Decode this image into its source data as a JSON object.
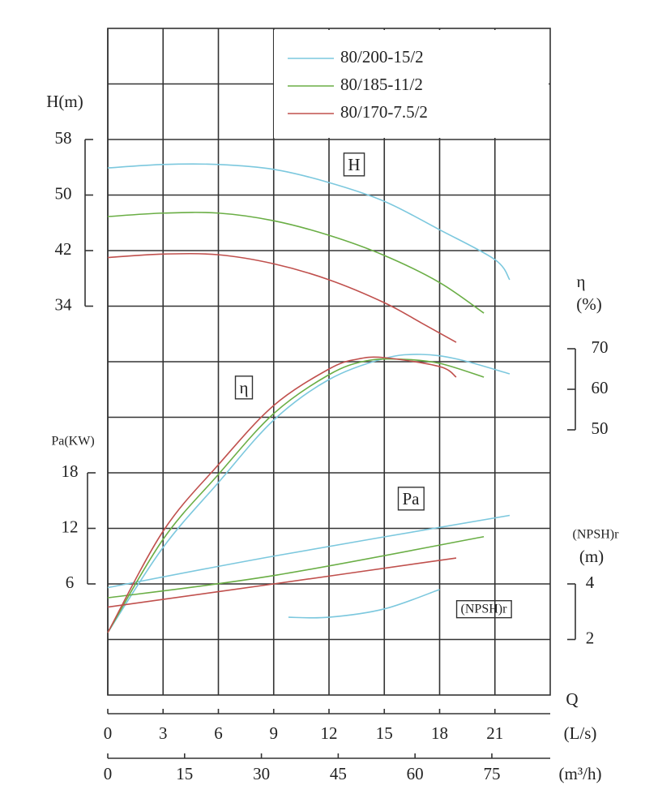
{
  "chart_data": {
    "type": "line",
    "x_label": "Q",
    "x_unit": "(L/s)",
    "x2_unit": "(m³/h)",
    "xlim": [
      0,
      24
    ],
    "xticks": [
      0,
      3,
      6,
      9,
      12,
      15,
      18,
      21
    ],
    "x2lim": [
      0,
      86.4
    ],
    "x2ticks": [
      0,
      15,
      30,
      45,
      60,
      75
    ],
    "grid": true,
    "axes": {
      "H": {
        "label": "H(m)",
        "ylim": [
          -22,
          74
        ],
        "yticks": [
          34,
          42,
          50,
          58
        ]
      },
      "eta": {
        "label": "η",
        "unit": "(%)",
        "ylim": [
          -15.4,
          149
        ],
        "yticks": [
          50,
          60,
          70
        ]
      },
      "Pa": {
        "label": "Pa(KW)",
        "ylim": [
          -6,
          66
        ],
        "yticks": [
          6,
          12,
          18
        ]
      },
      "NPSH": {
        "label": "(NPSH)r",
        "unit": "(m)",
        "ylim": [
          0,
          24
        ],
        "yticks": [
          2,
          4
        ]
      }
    },
    "annotations": [
      "H",
      "η",
      "Pa",
      "(NPSH)r"
    ],
    "series": [
      {
        "name": "80/200-15/2",
        "color": "#7cc8de",
        "curves": [
          {
            "axis": "H",
            "x": [
              0,
              3,
              6,
              9,
              12,
              15,
              18,
              21,
              21.8
            ],
            "values": [
              53.9,
              54.4,
              54.4,
              53.7,
              51.8,
              49.1,
              45.0,
              40.7,
              37.8
            ]
          },
          {
            "axis": "eta",
            "x": [
              0,
              3,
              6,
              9,
              12,
              15,
              17,
              19,
              21.8
            ],
            "values": [
              0,
              21,
              37,
              52.4,
              62.4,
              67.6,
              68.6,
              67.4,
              63.8
            ]
          },
          {
            "axis": "Pa",
            "x": [
              0,
              9,
              21.8
            ],
            "values": [
              5.6,
              9.0,
              13.4
            ]
          },
          {
            "axis": "NPSH",
            "x": [
              9.8,
              12,
              15,
              18
            ],
            "values": [
              2.8,
              2.8,
              3.1,
              3.8
            ]
          }
        ]
      },
      {
        "name": "80/185-11/2",
        "color": "#6aae45",
        "curves": [
          {
            "axis": "H",
            "x": [
              0,
              3,
              6,
              9,
              12,
              15,
              18,
              20.4
            ],
            "values": [
              46.9,
              47.4,
              47.4,
              46.3,
              44.2,
              41.3,
              37.4,
              33.0
            ]
          },
          {
            "axis": "eta",
            "x": [
              0,
              3,
              6,
              9,
              12,
              14,
              16,
              18,
              20.4
            ],
            "values": [
              0,
              23,
              39,
              54,
              63.6,
              67,
              67.4,
              66.4,
              63
            ]
          },
          {
            "axis": "Pa",
            "x": [
              0,
              9,
              20.4
            ],
            "values": [
              4.5,
              6.9,
              11.1
            ]
          }
        ]
      },
      {
        "name": "80/170-7.5/2",
        "color": "#c0504d",
        "curves": [
          {
            "axis": "H",
            "x": [
              0,
              3,
              6,
              9,
              12,
              15,
              17,
              18.9
            ],
            "values": [
              41.0,
              41.5,
              41.4,
              40.1,
              37.8,
              34.5,
              31.6,
              28.8
            ]
          },
          {
            "axis": "eta",
            "x": [
              0,
              3,
              6,
              9,
              12,
              13.5,
              15,
              18,
              18.9
            ],
            "values": [
              0,
              25,
              41.4,
              56,
              65,
              67.4,
              67.8,
              65.6,
              63
            ]
          },
          {
            "axis": "Pa",
            "x": [
              0,
              9,
              18.9
            ],
            "values": [
              3.5,
              6.0,
              8.8
            ]
          }
        ]
      }
    ]
  }
}
